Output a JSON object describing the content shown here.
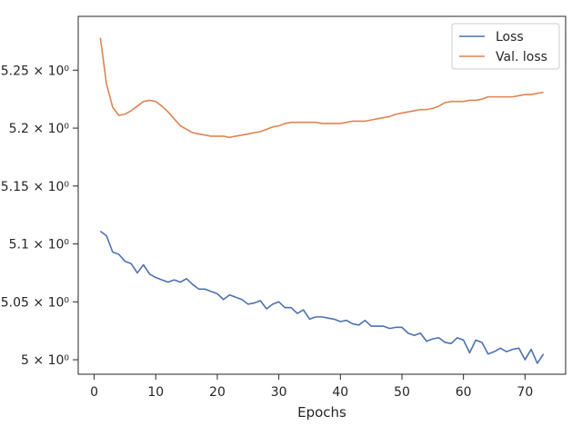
{
  "chart_data": {
    "type": "line",
    "title": "",
    "xlabel": "Epochs",
    "ylabel": "",
    "xlim": [
      -2.6,
      76.6
    ],
    "ylim": [
      4.9875,
      5.2965
    ],
    "xticks": [
      0,
      10,
      20,
      30,
      40,
      50,
      60,
      70
    ],
    "xtick_labels": [
      "0",
      "10",
      "20",
      "30",
      "40",
      "50",
      "60",
      "70"
    ],
    "yticks": [
      5.0,
      5.05,
      5.1,
      5.15,
      5.2,
      5.25
    ],
    "ytick_labels": [
      "5 × 10⁰",
      "5.05 × 10⁰",
      "5.1 × 10⁰",
      "5.15 × 10⁰",
      "5.2 × 10⁰",
      "5.25 × 10⁰"
    ],
    "grid": false,
    "legend_position": "top-right",
    "x": [
      1,
      2,
      3,
      4,
      5,
      6,
      7,
      8,
      9,
      10,
      11,
      12,
      13,
      14,
      15,
      16,
      17,
      18,
      19,
      20,
      21,
      22,
      23,
      24,
      25,
      26,
      27,
      28,
      29,
      30,
      31,
      32,
      33,
      34,
      35,
      36,
      37,
      38,
      39,
      40,
      41,
      42,
      43,
      44,
      45,
      46,
      47,
      48,
      49,
      50,
      51,
      52,
      53,
      54,
      55,
      56,
      57,
      58,
      59,
      60,
      61,
      62,
      63,
      64,
      65,
      66,
      67,
      68,
      69,
      70,
      71,
      72,
      73
    ],
    "series": [
      {
        "name": "Loss",
        "color": "#4c72b0",
        "values": [
          5.111,
          5.107,
          5.093,
          5.091,
          5.085,
          5.083,
          5.075,
          5.082,
          5.074,
          5.071,
          5.069,
          5.067,
          5.069,
          5.067,
          5.07,
          5.065,
          5.061,
          5.061,
          5.059,
          5.057,
          5.052,
          5.056,
          5.054,
          5.052,
          5.048,
          5.049,
          5.051,
          5.044,
          5.048,
          5.05,
          5.045,
          5.045,
          5.04,
          5.043,
          5.035,
          5.037,
          5.037,
          5.036,
          5.035,
          5.033,
          5.034,
          5.031,
          5.03,
          5.034,
          5.029,
          5.029,
          5.029,
          5.027,
          5.028,
          5.028,
          5.023,
          5.021,
          5.023,
          5.016,
          5.018,
          5.019,
          5.015,
          5.014,
          5.019,
          5.017,
          5.006,
          5.017,
          5.015,
          5.005,
          5.007,
          5.01,
          5.007,
          5.009,
          5.01,
          5.0,
          5.009,
          4.997,
          5.005
        ]
      },
      {
        "name": "Val. loss",
        "color": "#dd8452",
        "values": [
          5.278,
          5.238,
          5.218,
          5.211,
          5.212,
          5.215,
          5.219,
          5.223,
          5.224,
          5.223,
          5.219,
          5.214,
          5.208,
          5.202,
          5.199,
          5.196,
          5.195,
          5.194,
          5.193,
          5.193,
          5.193,
          5.192,
          5.193,
          5.194,
          5.195,
          5.196,
          5.197,
          5.199,
          5.201,
          5.202,
          5.204,
          5.205,
          5.205,
          5.205,
          5.205,
          5.205,
          5.204,
          5.204,
          5.204,
          5.204,
          5.205,
          5.206,
          5.206,
          5.206,
          5.207,
          5.208,
          5.209,
          5.21,
          5.212,
          5.213,
          5.214,
          5.215,
          5.216,
          5.216,
          5.217,
          5.219,
          5.222,
          5.223,
          5.223,
          5.223,
          5.224,
          5.224,
          5.225,
          5.227,
          5.227,
          5.227,
          5.227,
          5.227,
          5.228,
          5.229,
          5.229,
          5.23,
          5.231
        ]
      }
    ]
  }
}
